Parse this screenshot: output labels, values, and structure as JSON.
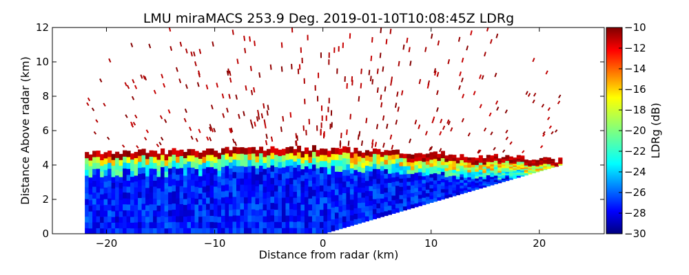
{
  "chart_data": {
    "type": "heatmap",
    "title": "LMU miraMACS 253.9 Deg. 2019-01-10T10:08:45Z  LDRg",
    "xlabel": "Distance from radar (km)",
    "ylabel": "Distance Above radar  (km)",
    "xlim": [
      -25,
      26
    ],
    "ylim": [
      0,
      12
    ],
    "xticks": [
      -20,
      -10,
      0,
      10,
      20
    ],
    "xtick_labels": [
      "−20",
      "−10",
      "0",
      "10",
      "20"
    ],
    "yticks": [
      0,
      2,
      4,
      6,
      8,
      10,
      12
    ],
    "ytick_labels": [
      "0",
      "2",
      "4",
      "6",
      "8",
      "10",
      "12"
    ],
    "colorbar": {
      "label": "LDRg (dB)",
      "range": [
        -30,
        -10
      ],
      "ticks": [
        -30,
        -28,
        -26,
        -24,
        -22,
        -20,
        -18,
        -16,
        -14,
        -12,
        -10
      ],
      "tick_labels": [
        "−30",
        "−28",
        "−26",
        "−24",
        "−22",
        "−20",
        "−18",
        "−16",
        "−14",
        "−12",
        "−10"
      ],
      "colormap": "jet"
    },
    "scan": {
      "left_edge_km": -22,
      "right_edge_km": 22,
      "right_slant_top_km": 4,
      "cloud_top_left_km": 4.7,
      "cloud_top_center_km": 5,
      "cloud_top_right_km": 4.3,
      "top_band_ldr_db": -10,
      "upper_band_ldr_db": -18,
      "core_ldr_db": -27,
      "sparse_echo_ldr_db": -10,
      "sparse_echo_top_km": 12
    }
  }
}
